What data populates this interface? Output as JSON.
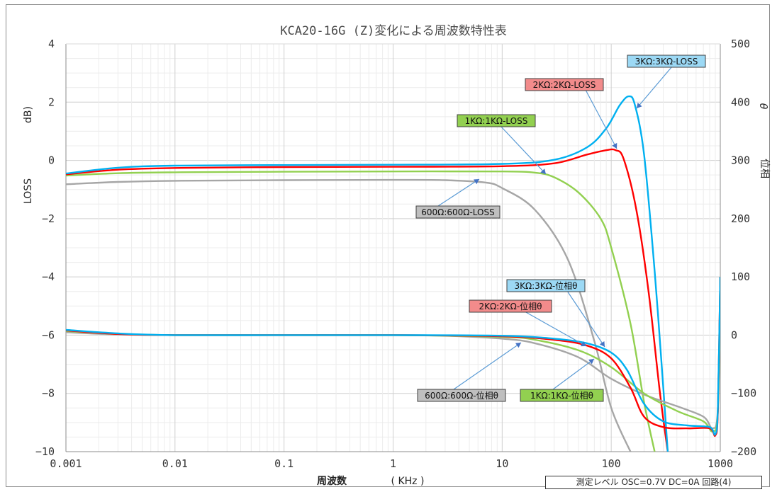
{
  "chart_data": {
    "type": "line",
    "title": "KCA20-16G (Z)変化による周波数特性表",
    "xlabel": "周波数",
    "xlabel_unit": "( KHz )",
    "ylabel_left": "LOSS",
    "ylabel_left_unit": "dB)",
    "ylabel_right": "位相",
    "ylabel_right_symbol": "θ",
    "xscale": "log",
    "xlim": [
      0.001,
      1000
    ],
    "ylim_left": [
      -10,
      4
    ],
    "ylim_right": [
      -200,
      500
    ],
    "grid": true,
    "x_ticks": [
      "0.001",
      "0.01",
      "0.1",
      "1",
      "10",
      "100",
      "1000"
    ],
    "x_tick_values": [
      0.001,
      0.01,
      0.1,
      1,
      10,
      100,
      1000
    ],
    "y_left_ticks": [
      "4",
      "2",
      "0",
      "−2",
      "−4",
      "−6",
      "−8",
      "−10"
    ],
    "y_left_tick_values": [
      4,
      2,
      0,
      -2,
      -4,
      -6,
      -8,
      -10
    ],
    "y_right_ticks": [
      "500",
      "400",
      "300",
      "200",
      "100",
      "0",
      "−100",
      "−200"
    ],
    "y_right_tick_values": [
      500,
      400,
      300,
      200,
      100,
      0,
      -100,
      -200
    ],
    "series": [
      {
        "name": "600Ω:600Ω-LOSS",
        "axis": "left",
        "color": "#a6a6a6",
        "x": [
          0.001,
          0.003,
          0.01,
          0.1,
          1,
          3,
          7,
          10,
          20,
          40,
          70,
          100,
          150
        ],
        "y": [
          -0.82,
          -0.74,
          -0.7,
          -0.68,
          -0.67,
          -0.68,
          -0.76,
          -0.95,
          -1.7,
          -3.4,
          -6.2,
          -8.5,
          -10.0
        ]
      },
      {
        "name": "1KΩ:1KΩ-LOSS",
        "axis": "left",
        "color": "#92d050",
        "x": [
          0.001,
          0.003,
          0.01,
          0.1,
          1,
          10,
          20,
          30,
          50,
          80,
          100,
          150,
          200,
          250
        ],
        "y": [
          -0.52,
          -0.44,
          -0.41,
          -0.39,
          -0.38,
          -0.38,
          -0.42,
          -0.58,
          -1.1,
          -2.0,
          -3.0,
          -5.6,
          -8.3,
          -10.0
        ]
      },
      {
        "name": "2KΩ:2KΩ-LOSS",
        "axis": "left",
        "color": "#ff0000",
        "x": [
          0.001,
          0.003,
          0.01,
          0.1,
          1,
          10,
          30,
          60,
          90,
          110,
          130,
          170,
          220,
          280,
          330
        ],
        "y": [
          -0.48,
          -0.32,
          -0.26,
          -0.23,
          -0.22,
          -0.2,
          -0.1,
          0.2,
          0.35,
          0.35,
          0.05,
          -1.7,
          -4.5,
          -8.0,
          -10.0
        ]
      },
      {
        "name": "3KΩ:3KΩ-LOSS",
        "axis": "left",
        "color": "#00b0f0",
        "x": [
          0.001,
          0.003,
          0.01,
          0.1,
          1,
          10,
          30,
          60,
          90,
          120,
          145,
          165,
          200,
          250,
          300,
          330
        ],
        "y": [
          -0.45,
          -0.25,
          -0.18,
          -0.16,
          -0.15,
          -0.12,
          0.02,
          0.45,
          1.1,
          1.9,
          2.2,
          1.9,
          0.2,
          -3.8,
          -7.8,
          -10.0
        ]
      },
      {
        "name": "600Ω:600Ω-位相θ",
        "axis": "right",
        "color": "#a6a6a6",
        "x": [
          0.001,
          0.003,
          0.01,
          0.1,
          1,
          3,
          10,
          20,
          50,
          100,
          200,
          400,
          700,
          850,
          950,
          1000
        ],
        "y": [
          5,
          1,
          0,
          0,
          0,
          -1,
          -6,
          -14,
          -38,
          -75,
          -102,
          -122,
          -140,
          -160,
          -125,
          100
        ]
      },
      {
        "name": "1KΩ:1KΩ-位相θ",
        "axis": "right",
        "color": "#92d050",
        "x": [
          0.001,
          0.003,
          0.01,
          0.1,
          1,
          10,
          20,
          50,
          100,
          200,
          400,
          700,
          850,
          950,
          1000
        ],
        "y": [
          7,
          2,
          0,
          0,
          0,
          -3,
          -8,
          -26,
          -55,
          -100,
          -130,
          -148,
          -165,
          -130,
          100
        ]
      },
      {
        "name": "2KΩ:2KΩ-位相θ",
        "axis": "right",
        "color": "#ff0000",
        "x": [
          0.001,
          0.003,
          0.01,
          0.1,
          1,
          10,
          30,
          60,
          100,
          150,
          200,
          300,
          500,
          800,
          900,
          950,
          1000
        ],
        "y": [
          8,
          2,
          0,
          0,
          0,
          -2,
          -8,
          -18,
          -40,
          -90,
          -140,
          -158,
          -160,
          -160,
          -172,
          -130,
          100
        ]
      },
      {
        "name": "3KΩ:3KΩ-位相θ",
        "axis": "right",
        "color": "#00b0f0",
        "x": [
          0.001,
          0.003,
          0.01,
          0.1,
          1,
          10,
          30,
          60,
          100,
          140,
          200,
          300,
          500,
          800,
          900,
          950,
          1000
        ],
        "y": [
          9,
          3,
          0,
          0,
          0,
          -1,
          -6,
          -14,
          -30,
          -60,
          -118,
          -148,
          -155,
          -158,
          -170,
          -125,
          100
        ]
      }
    ],
    "annotations": [
      {
        "text": "3KΩ:3KΩ-LOSS",
        "color": "#9cd9f5"
      },
      {
        "text": "2KΩ:2KΩ-LOSS",
        "color": "#f28b8b"
      },
      {
        "text": "1KΩ:1KΩ-LOSS",
        "color": "#92d050"
      },
      {
        "text": "600Ω:600Ω-LOSS",
        "color": "#bfbfbf"
      },
      {
        "text": "3KΩ:3KΩ-位相θ",
        "color": "#9cd9f5"
      },
      {
        "text": "2KΩ:2KΩ-位相θ",
        "color": "#f28b8b"
      },
      {
        "text": "600Ω:600Ω-位相θ",
        "color": "#bfbfbf"
      },
      {
        "text": "1KΩ:1KΩ-位相θ",
        "color": "#92d050"
      }
    ]
  },
  "footer": {
    "measurement_label": "測定レベル OSC=0.7V DC=0A 回路(4)"
  }
}
